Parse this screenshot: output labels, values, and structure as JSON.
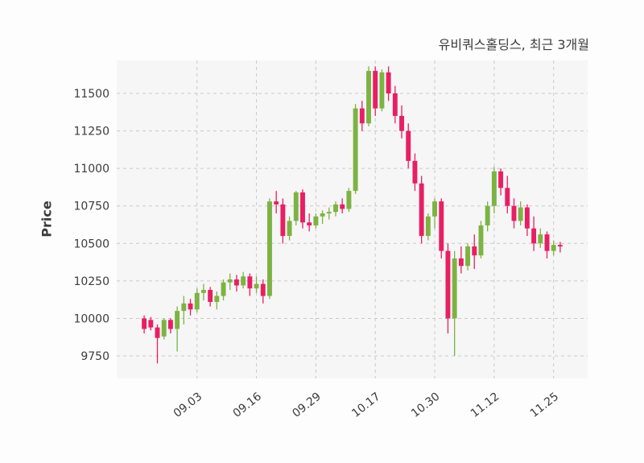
{
  "chart": {
    "title": "유비쿼스홀딩스, 최근 3개월",
    "ylabel": "Price"
  },
  "chart_data": {
    "type": "candlestick",
    "title": "유비쿼스홀딩스, 최근 3개월",
    "ylabel": "Price",
    "xlabel": "",
    "grid": "dashed",
    "legend": "none",
    "plot_background": "#f6f6f6",
    "grid_color": "#c9c9c9",
    "text_color": "#3c3c3c",
    "up_color": "#7cb342",
    "down_color": "#e91e63",
    "ylim": [
      9600,
      11720
    ],
    "yticks": [
      9750,
      10000,
      10250,
      10500,
      10750,
      11000,
      11250,
      11500
    ],
    "xtick_labels": [
      "09.03",
      "09.16",
      "09.29",
      "10.17",
      "10.30",
      "11.12",
      "11.25"
    ],
    "xtick_indices": [
      8,
      17,
      26,
      35,
      44,
      53,
      62
    ],
    "candles_format": [
      "open",
      "high",
      "low",
      "close"
    ],
    "candles": [
      [
        10000,
        10020,
        9900,
        9930
      ],
      [
        9990,
        10010,
        9920,
        9940
      ],
      [
        9940,
        9960,
        9700,
        9870
      ],
      [
        9880,
        10000,
        9860,
        9990
      ],
      [
        9990,
        10000,
        9900,
        9930
      ],
      [
        9930,
        10080,
        9780,
        10050
      ],
      [
        10050,
        10150,
        9960,
        10100
      ],
      [
        10100,
        10130,
        10020,
        10060
      ],
      [
        10060,
        10200,
        10040,
        10170
      ],
      [
        10170,
        10230,
        10120,
        10190
      ],
      [
        10190,
        10210,
        10080,
        10110
      ],
      [
        10110,
        10180,
        10060,
        10150
      ],
      [
        10150,
        10260,
        10120,
        10240
      ],
      [
        10240,
        10300,
        10190,
        10260
      ],
      [
        10260,
        10290,
        10180,
        10220
      ],
      [
        10220,
        10310,
        10200,
        10280
      ],
      [
        10280,
        10300,
        10150,
        10200
      ],
      [
        10200,
        10280,
        10170,
        10230
      ],
      [
        10230,
        10260,
        10100,
        10150
      ],
      [
        10150,
        10800,
        10130,
        10780
      ],
      [
        10780,
        10850,
        10700,
        10760
      ],
      [
        10760,
        10800,
        10500,
        10550
      ],
      [
        10550,
        10680,
        10520,
        10650
      ],
      [
        10650,
        10850,
        10620,
        10840
      ],
      [
        10840,
        10860,
        10600,
        10640
      ],
      [
        10640,
        10700,
        10580,
        10620
      ],
      [
        10620,
        10700,
        10600,
        10680
      ],
      [
        10680,
        10720,
        10630,
        10700
      ],
      [
        10700,
        10740,
        10660,
        10710
      ],
      [
        10710,
        10780,
        10680,
        10760
      ],
      [
        10760,
        10800,
        10700,
        10730
      ],
      [
        10730,
        10870,
        10710,
        10850
      ],
      [
        10850,
        11430,
        10830,
        11400
      ],
      [
        11400,
        11450,
        11250,
        11300
      ],
      [
        11300,
        11680,
        11280,
        11650
      ],
      [
        11650,
        11680,
        11350,
        11400
      ],
      [
        11400,
        11660,
        11380,
        11640
      ],
      [
        11640,
        11680,
        11450,
        11500
      ],
      [
        11500,
        11550,
        11300,
        11350
      ],
      [
        11350,
        11420,
        11200,
        11250
      ],
      [
        11250,
        11300,
        11000,
        11050
      ],
      [
        11050,
        11100,
        10850,
        10900
      ],
      [
        10900,
        10950,
        10500,
        10550
      ],
      [
        10550,
        10700,
        10520,
        10680
      ],
      [
        10680,
        10800,
        10600,
        10780
      ],
      [
        10780,
        10800,
        10400,
        10450
      ],
      [
        10450,
        10500,
        9900,
        10000
      ],
      [
        10000,
        10450,
        9750,
        10400
      ],
      [
        10400,
        10480,
        10300,
        10350
      ],
      [
        10350,
        10500,
        10320,
        10480
      ],
      [
        10480,
        10560,
        10330,
        10420
      ],
      [
        10420,
        10650,
        10400,
        10620
      ],
      [
        10620,
        10780,
        10580,
        10750
      ],
      [
        10750,
        11010,
        10700,
        10980
      ],
      [
        10980,
        11000,
        10820,
        10870
      ],
      [
        10870,
        10950,
        10700,
        10750
      ],
      [
        10750,
        10800,
        10600,
        10650
      ],
      [
        10650,
        10780,
        10620,
        10740
      ],
      [
        10740,
        10760,
        10550,
        10600
      ],
      [
        10600,
        10680,
        10450,
        10500
      ],
      [
        10500,
        10600,
        10470,
        10560
      ],
      [
        10560,
        10580,
        10400,
        10450
      ],
      [
        10450,
        10520,
        10420,
        10490
      ],
      [
        10490,
        10510,
        10440,
        10480
      ]
    ]
  }
}
